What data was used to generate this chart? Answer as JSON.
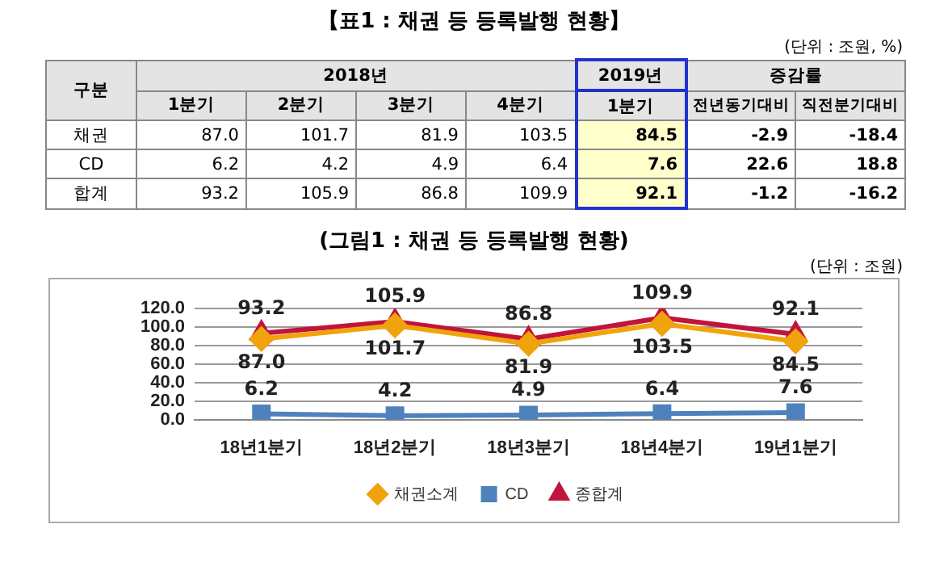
{
  "chart_data": [
    {
      "type": "heatmap",
      "title": "【표1 : 채권 등 등록발행 현황】",
      "annotations": [
        "(단위 : 조원, %)",
        "2018년",
        "2019년",
        "증감률"
      ],
      "ylabel": "구분",
      "categories": [
        "1분기",
        "2분기",
        "3분기",
        "4분기",
        "1분기",
        "전년동기대비",
        "직전분기대비"
      ],
      "y_categories": [
        "채권",
        "CD",
        "합계"
      ],
      "cells": [
        [
          87.0,
          101.7,
          81.9,
          103.5,
          84.5,
          -2.9,
          -18.4
        ],
        [
          6.2,
          4.2,
          4.9,
          6.4,
          7.6,
          22.6,
          18.8
        ],
        [
          93.2,
          105.9,
          86.8,
          109.9,
          92.1,
          -1.2,
          -16.2
        ]
      ],
      "data_labels": true,
      "cell_labels": [
        [
          "87.0",
          "101.7",
          "81.9",
          "103.5",
          "84.5",
          "-2.9",
          "-18.4"
        ],
        [
          "6.2",
          "4.2",
          "4.9",
          "6.4",
          "7.6",
          "22.6",
          "18.8"
        ],
        [
          "93.2",
          "105.9",
          "86.8",
          "109.9",
          "92.1",
          "-1.2",
          "-16.2"
        ]
      ]
    },
    {
      "type": "line",
      "title": "(그림1 : 채권 등 등록발행 현황)",
      "annotations": [
        "(단위 : 조원)"
      ],
      "categories": [
        "18년1분기",
        "18년2분기",
        "18년3분기",
        "18년4분기",
        "19년1분기"
      ],
      "series": [
        {
          "name": "채권소계",
          "color": "#f0a30a",
          "marker": "diamond",
          "values": [
            87.0,
            101.7,
            81.9,
            103.5,
            84.5
          ],
          "value_labels": [
            "87.0",
            "101.7",
            "81.9",
            "103.5",
            "84.5"
          ]
        },
        {
          "name": "CD",
          "color": "#4f81bd",
          "marker": "square",
          "values": [
            6.2,
            4.2,
            4.9,
            6.4,
            7.6
          ]
        },
        {
          "name": "종합계",
          "color": "#c0143c",
          "marker": "triangle",
          "values": [
            93.2,
            105.9,
            86.8,
            109.9,
            92.1
          ]
        }
      ],
      "ylim": [
        0,
        120
      ],
      "yticks": [
        {
          "value": 0,
          "label": "0.0"
        },
        {
          "value": 20,
          "label": "20.0"
        },
        {
          "value": 40,
          "label": "40.0"
        },
        {
          "value": 60,
          "label": "60.0"
        },
        {
          "value": 80,
          "label": "80.0"
        },
        {
          "value": 100,
          "label": "100.0"
        },
        {
          "value": 120,
          "label": "120.0"
        }
      ],
      "grid": "y",
      "legend": "bottom",
      "data_labels": true
    }
  ]
}
